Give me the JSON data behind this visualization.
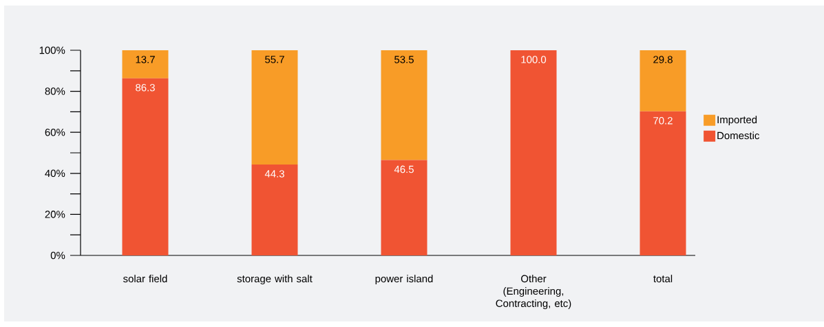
{
  "chart_data": {
    "type": "bar",
    "stacked": true,
    "categories": [
      "solar field",
      "storage with salt",
      "power island",
      "Other (Engineering, Contracting, etc)",
      "total"
    ],
    "series": [
      {
        "name": "Domestic",
        "color": "#f05433",
        "values": [
          86.3,
          44.3,
          46.5,
          100.0,
          70.2
        ],
        "value_labels": [
          "86.3",
          "44.3",
          "46.5",
          "100.0",
          "70.2"
        ]
      },
      {
        "name": "Imported",
        "color": "#f89c27",
        "values": [
          13.7,
          55.7,
          53.5,
          0.0,
          29.8
        ],
        "value_labels": [
          "13.7",
          "55.7",
          "53.5",
          null,
          "29.8"
        ]
      }
    ],
    "ylim": [
      0,
      100
    ],
    "yticks": [
      {
        "value": 0,
        "label": "0%"
      },
      {
        "value": 10,
        "label": null
      },
      {
        "value": 20,
        "label": "20%"
      },
      {
        "value": 30,
        "label": null
      },
      {
        "value": 40,
        "label": "40%"
      },
      {
        "value": 50,
        "label": null
      },
      {
        "value": 60,
        "label": "60%"
      },
      {
        "value": 70,
        "label": null
      },
      {
        "value": 80,
        "label": "80%"
      },
      {
        "value": 90,
        "label": null
      },
      {
        "value": 100,
        "label": "100%"
      }
    ],
    "legend": "right",
    "grid": false
  }
}
